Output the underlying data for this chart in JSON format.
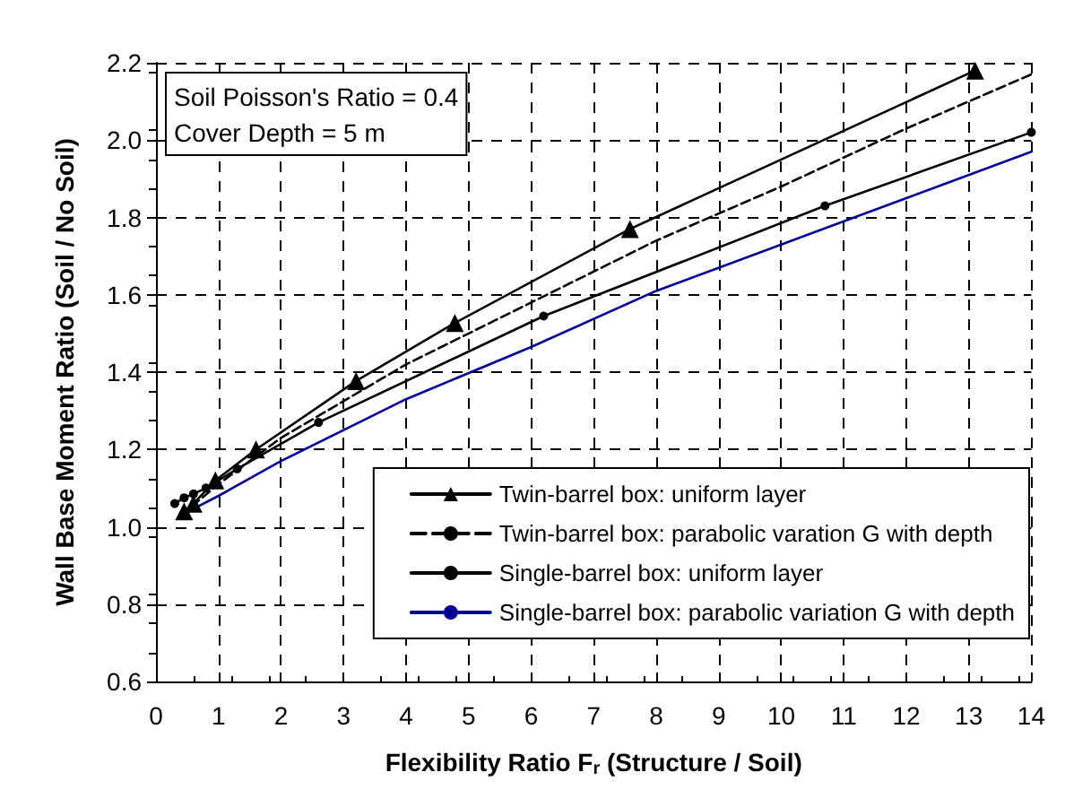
{
  "chart_data": {
    "type": "line",
    "xlabel": "Flexibility Ratio F$_{r}$ (Structure / Soil)",
    "ylabel": "Wall Base Moment Ratio (Soil / No Soil)",
    "annotations": [
      "Soil Poisson's Ratio = 0.4",
      "Cover Depth = 5 m"
    ],
    "xlim": [
      0,
      14
    ],
    "xticks": [
      0,
      1,
      2,
      3,
      4,
      5,
      6,
      7,
      8,
      9,
      10,
      11,
      12,
      13,
      14
    ],
    "ylim": [
      0.6,
      2.2
    ],
    "yticks": [
      0.6,
      0.8,
      {
        "value": 1,
        "label": "1.0"
      },
      1.2,
      1.4,
      1.6,
      1.8,
      {
        "value": 2,
        "label": "2.0"
      },
      2.2
    ],
    "grid": true,
    "legend": "bottom right",
    "series": [
      {
        "name": "Twin-barrel box: uniform layer",
        "color": "#000000",
        "marker": "triangle",
        "line_style": "solid",
        "x": [
          0.45,
          0.6,
          0.95,
          1.6,
          3.2,
          4.78,
          7.58,
          13.1
        ],
        "values": [
          1.04,
          1.06,
          1.12,
          1.2,
          1.377,
          1.527,
          1.77,
          2.18
        ]
      },
      {
        "name": "Twin-barrel box: parabolic varation G with depth",
        "color": "#000000",
        "marker": "none",
        "line_style": "dashed",
        "x": [
          0.4,
          1,
          2,
          4,
          6,
          8,
          10,
          12,
          14
        ],
        "values": [
          1.03,
          1.11,
          1.23,
          1.42,
          1.58,
          1.74,
          1.88,
          2.03,
          2.17
        ]
      },
      {
        "name": "Single-barrel box: uniform layer",
        "color": "#000000",
        "marker": "circle",
        "line_style": "solid",
        "x": [
          0.3,
          0.45,
          0.6,
          0.8,
          1.3,
          2.6,
          6.2,
          10.7,
          14
        ],
        "values": [
          1.06,
          1.075,
          1.085,
          1.1,
          1.15,
          1.27,
          1.545,
          1.83,
          2.02
        ]
      },
      {
        "name": "Single-barrel box: parabolic variation G with depth",
        "color": "#000099",
        "marker": "none",
        "line_style": "solid",
        "x": [
          0.4,
          1,
          2,
          4,
          6,
          8,
          10,
          12,
          14
        ],
        "values": [
          1.03,
          1.08,
          1.17,
          1.33,
          1.465,
          1.61,
          1.73,
          1.85,
          1.97
        ]
      }
    ]
  }
}
